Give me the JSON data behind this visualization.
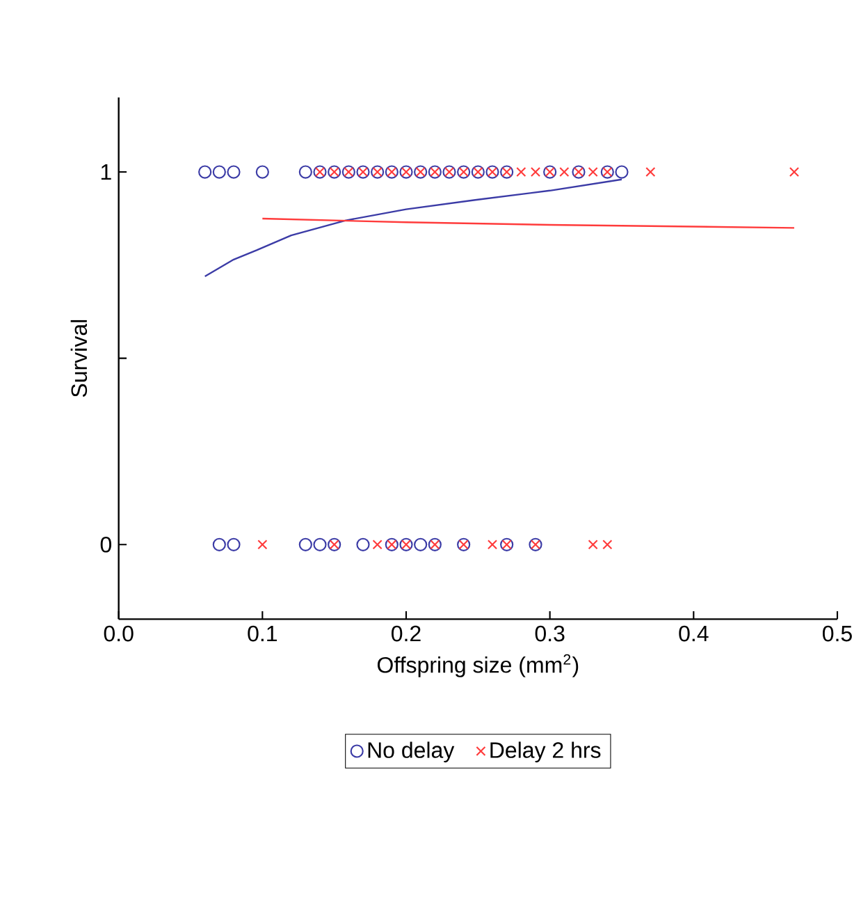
{
  "chart_data": {
    "type": "scatter",
    "xlabel": "Offspring size (mm$^{2}$)",
    "ylabel": "Survival",
    "xlim": [
      0,
      0.5
    ],
    "xticks": [
      {
        "value": 0,
        "label": "0.0"
      },
      0.1,
      0.2,
      0.3,
      0.4,
      0.5
    ],
    "ylim": [
      -0.2,
      1.2
    ],
    "yticks": [
      0,
      {
        "value": 0.5,
        "label": null
      },
      1
    ],
    "grid": false,
    "legend": "bottom",
    "series": [
      {
        "name": "No delay",
        "color": "#3b3ba6",
        "marker": "circle",
        "x": [
          0.06,
          0.07,
          0.08,
          0.1,
          0.13,
          0.14,
          0.15,
          0.16,
          0.17,
          0.18,
          0.19,
          0.2,
          0.21,
          0.22,
          0.23,
          0.24,
          0.25,
          0.26,
          0.27,
          0.3,
          0.32,
          0.34,
          0.35,
          0.07,
          0.08,
          0.13,
          0.14,
          0.15,
          0.17,
          0.19,
          0.2,
          0.21,
          0.22,
          0.24,
          0.27,
          0.29
        ],
        "values": [
          1,
          1,
          1,
          1,
          1,
          1,
          1,
          1,
          1,
          1,
          1,
          1,
          1,
          1,
          1,
          1,
          1,
          1,
          1,
          1,
          1,
          1,
          1,
          0,
          0,
          0,
          0,
          0,
          0,
          0,
          0,
          0,
          0,
          0,
          0,
          0
        ]
      },
      {
        "name": "Delay 2 hrs",
        "color": "#ff3b3b",
        "marker": "cross",
        "x": [
          0.14,
          0.15,
          0.16,
          0.17,
          0.18,
          0.19,
          0.2,
          0.21,
          0.22,
          0.23,
          0.24,
          0.25,
          0.26,
          0.27,
          0.28,
          0.29,
          0.3,
          0.31,
          0.32,
          0.33,
          0.34,
          0.37,
          0.47,
          0.1,
          0.15,
          0.18,
          0.19,
          0.2,
          0.22,
          0.24,
          0.26,
          0.27,
          0.29,
          0.33,
          0.34
        ],
        "values": [
          1,
          1,
          1,
          1,
          1,
          1,
          1,
          1,
          1,
          1,
          1,
          1,
          1,
          1,
          1,
          1,
          1,
          1,
          1,
          1,
          1,
          1,
          1,
          0,
          0,
          0,
          0,
          0,
          0,
          0,
          0,
          0,
          0,
          0,
          0
        ]
      },
      {
        "type": "line",
        "color": "#3b3ba6",
        "marker": "none",
        "x": [
          0.06,
          0.08,
          0.096,
          0.12,
          0.158,
          0.2,
          0.248,
          0.3,
          0.35
        ],
        "values": [
          0.72,
          0.765,
          0.79,
          0.83,
          0.87,
          0.9,
          0.925,
          0.95,
          0.98
        ]
      },
      {
        "type": "line",
        "color": "#ff3b3b",
        "marker": "none",
        "x": [
          0.1,
          0.2,
          0.3,
          0.47
        ],
        "values": [
          0.875,
          0.865,
          0.858,
          0.85
        ]
      }
    ]
  }
}
